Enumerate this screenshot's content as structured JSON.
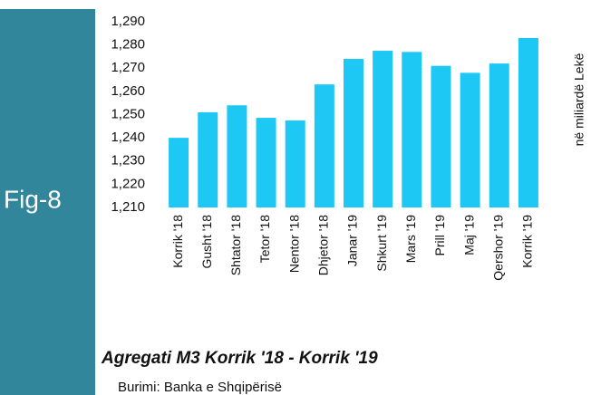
{
  "chart_data": {
    "type": "bar",
    "figure_label": "Fig-8",
    "title": "Agregati M3 Korrik '18 - Korrik '19",
    "source": "Burimi: Banka e Shqipërisë",
    "y_label": "në miliardë Lekë",
    "categories": [
      "Korrik '18",
      "Gusht '18",
      "Shtator '18",
      "Tetor '18",
      "Nentor '18",
      "Dhjetor '18",
      "Janar '19",
      "Shkurt '19",
      "Mars '19",
      "Prill '19",
      "Maj '19",
      "Qershor '19",
      "Korrik '19"
    ],
    "values": [
      1240,
      1251,
      1254,
      1248.6,
      1247.5,
      1263,
      1274,
      1277.5,
      1277,
      1271,
      1268,
      1272,
      1283
    ],
    "color": "#1ec8f5",
    "ylim": [
      1210,
      1290
    ],
    "yticks": [
      {
        "value": 1210,
        "label": "1,210"
      },
      {
        "value": 1220,
        "label": "1,220"
      },
      {
        "value": 1230,
        "label": "1,230"
      },
      {
        "value": 1240,
        "label": "1,240"
      },
      {
        "value": 1250,
        "label": "1,250"
      },
      {
        "value": 1260,
        "label": "1,260"
      },
      {
        "value": 1270,
        "label": "1,270"
      },
      {
        "value": 1280,
        "label": "1,280"
      },
      {
        "value": 1290,
        "label": "1,290"
      }
    ],
    "grid": false
  }
}
